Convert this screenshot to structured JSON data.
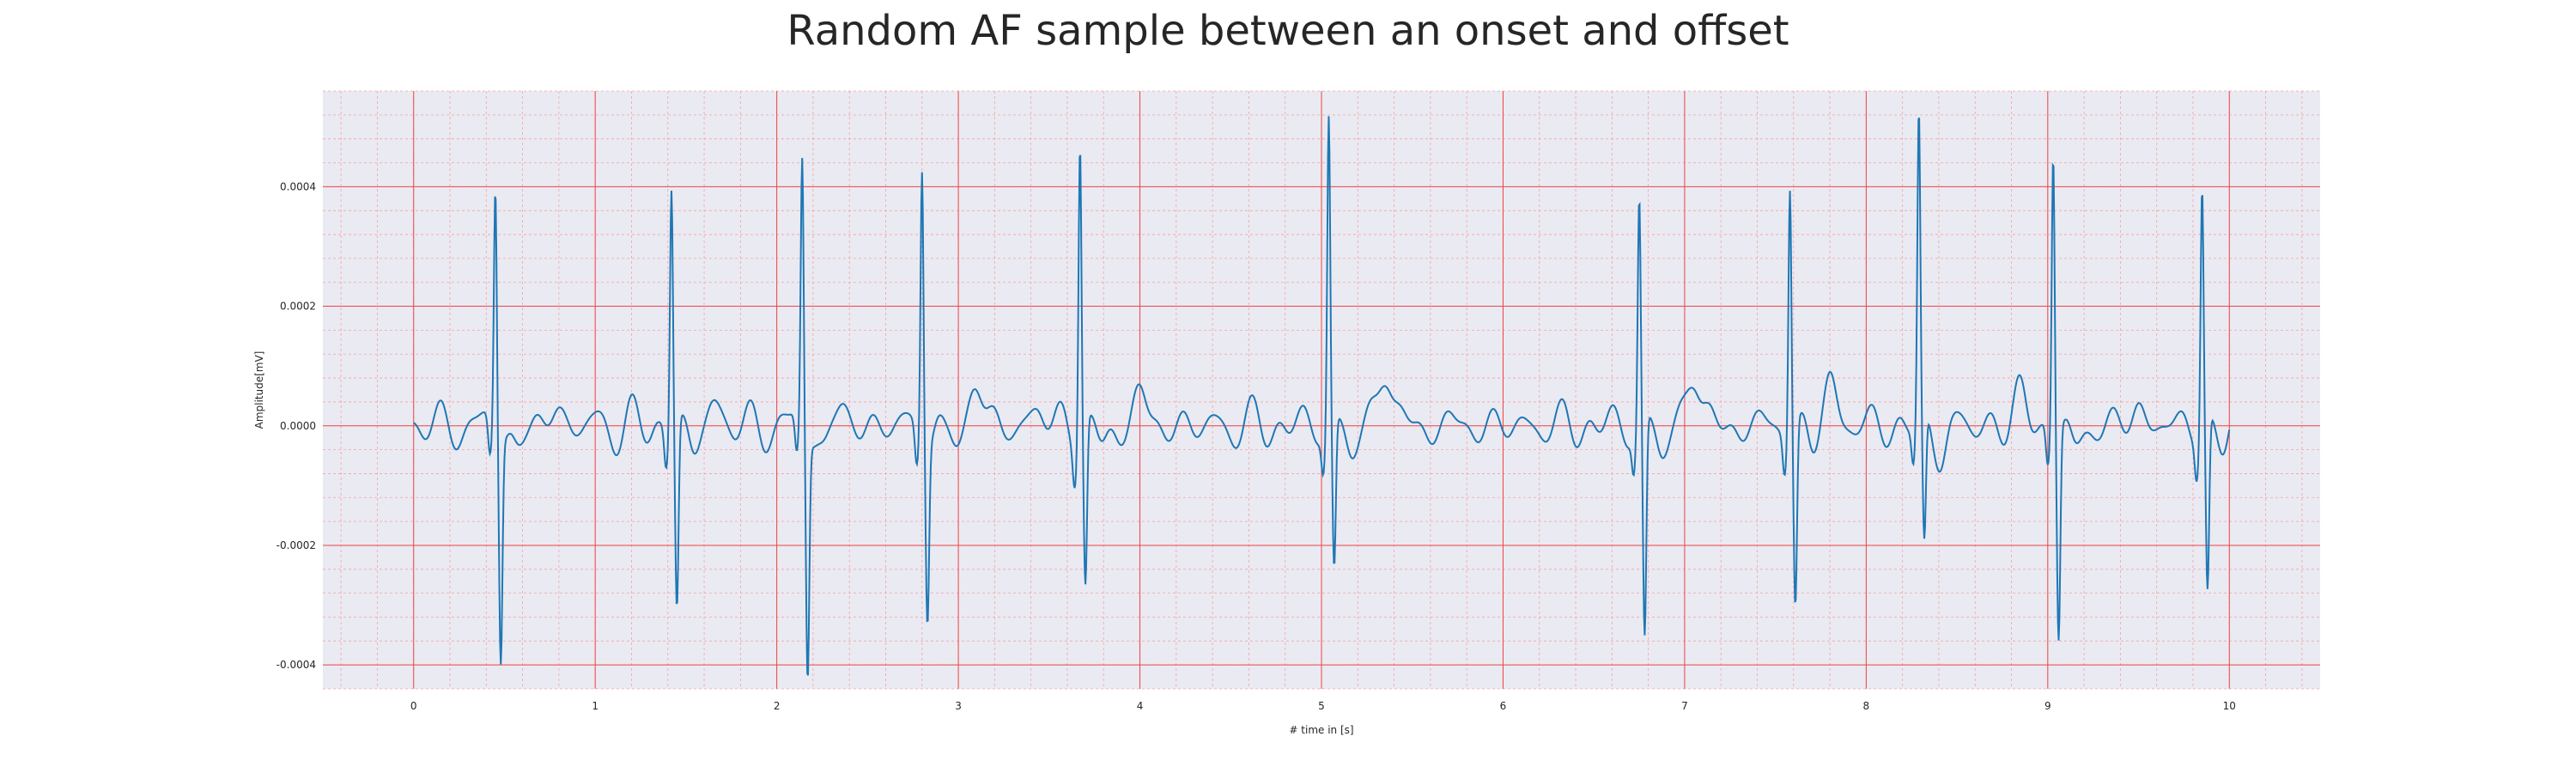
{
  "chart_data": {
    "type": "line",
    "title": "Random AF sample between an onset and offset",
    "xlabel": "# time in [s]",
    "ylabel": "Amplitude[mV]",
    "xlim": [
      -0.5,
      10.5
    ],
    "ylim": [
      -0.00044,
      0.00056
    ],
    "x_ticks": [
      0,
      1,
      2,
      3,
      4,
      5,
      6,
      7,
      8,
      9,
      10
    ],
    "x_tick_labels": [
      "0",
      "1",
      "2",
      "3",
      "4",
      "5",
      "6",
      "7",
      "8",
      "9",
      "10"
    ],
    "y_ticks": [
      -0.0004,
      -0.0002,
      0.0,
      0.0002,
      0.0004
    ],
    "y_tick_labels": [
      "-0.0004",
      "-0.0002",
      "0.0000",
      "0.0002",
      "0.0004"
    ],
    "grid": true,
    "minor_grid": true,
    "series": [
      {
        "color": "#1f77b4",
        "r_peaks": [
          {
            "t": 0.45,
            "peak": 0.00041,
            "trough": -0.00037
          },
          {
            "t": 1.42,
            "peak": 0.00041,
            "trough": -0.00031
          },
          {
            "t": 2.14,
            "peak": 0.00045,
            "trough": -0.0004
          },
          {
            "t": 2.8,
            "peak": 0.00046,
            "trough": -0.00029
          },
          {
            "t": 3.67,
            "peak": 0.0005,
            "trough": -0.00027
          },
          {
            "t": 5.04,
            "peak": 0.00052,
            "trough": -0.00025
          },
          {
            "t": 6.75,
            "peak": 0.00038,
            "trough": -0.00037
          },
          {
            "t": 7.58,
            "peak": 0.00042,
            "trough": -0.0003
          },
          {
            "t": 8.29,
            "peak": 0.00051,
            "trough": -0.00022
          },
          {
            "t": 9.03,
            "peak": 0.00047,
            "trough": -0.00035
          },
          {
            "t": 9.85,
            "peak": 0.00041,
            "trough": -0.00029
          }
        ],
        "baseline_events": [
          {
            "t": 0.78,
            "value": 3e-05
          },
          {
            "t": 1.65,
            "value": 4e-05
          },
          {
            "t": 2.35,
            "value": 3e-05
          },
          {
            "t": 3.1,
            "value": 7e-05
          },
          {
            "t": 3.45,
            "value": 3e-05
          },
          {
            "t": 4.0,
            "value": 5e-05
          },
          {
            "t": 5.35,
            "value": 0.00011
          },
          {
            "t": 7.05,
            "value": 0.0001
          },
          {
            "t": 7.8,
            "value": 8e-05
          },
          {
            "t": 8.85,
            "value": 5e-05
          },
          {
            "t": 9.5,
            "value": 3e-05
          }
        ],
        "x_range": [
          0,
          10
        ]
      }
    ]
  }
}
